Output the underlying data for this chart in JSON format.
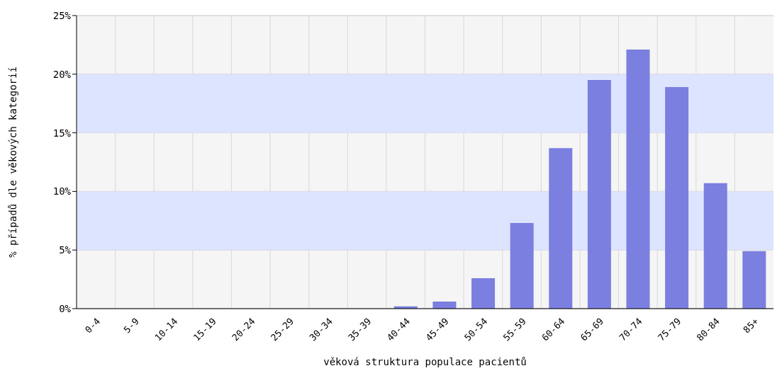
{
  "chart_data": {
    "type": "bar",
    "xlabel": "věková struktura populace pacientů",
    "ylabel": "% případů dle věkových kategorií",
    "categories": [
      "0-4",
      "5-9",
      "10-14",
      "15-19",
      "20-24",
      "25-29",
      "30-34",
      "35-39",
      "40-44",
      "45-49",
      "50-54",
      "55-59",
      "60-64",
      "65-69",
      "70-74",
      "75-79",
      "80-84",
      "85+"
    ],
    "values": [
      0,
      0,
      0,
      0,
      0,
      0,
      0,
      0,
      0.2,
      0.6,
      2.6,
      7.3,
      13.7,
      19.5,
      22.1,
      18.9,
      10.7,
      4.9
    ],
    "color": "#7b7fe0",
    "ylim": [
      0,
      25
    ],
    "yticks": [
      {
        "value": 0,
        "label": "0%"
      },
      {
        "value": 5,
        "label": "5%"
      },
      {
        "value": 10,
        "label": "10%"
      },
      {
        "value": 15,
        "label": "15%"
      },
      {
        "value": 20,
        "label": "20%"
      },
      {
        "value": 25,
        "label": "25%"
      }
    ],
    "bands": [
      {
        "axis": "y",
        "from": 5,
        "to": 10,
        "color": "#dde4ff"
      },
      {
        "axis": "y",
        "from": 15,
        "to": 20,
        "color": "#dde4ff"
      }
    ],
    "grid": true
  }
}
